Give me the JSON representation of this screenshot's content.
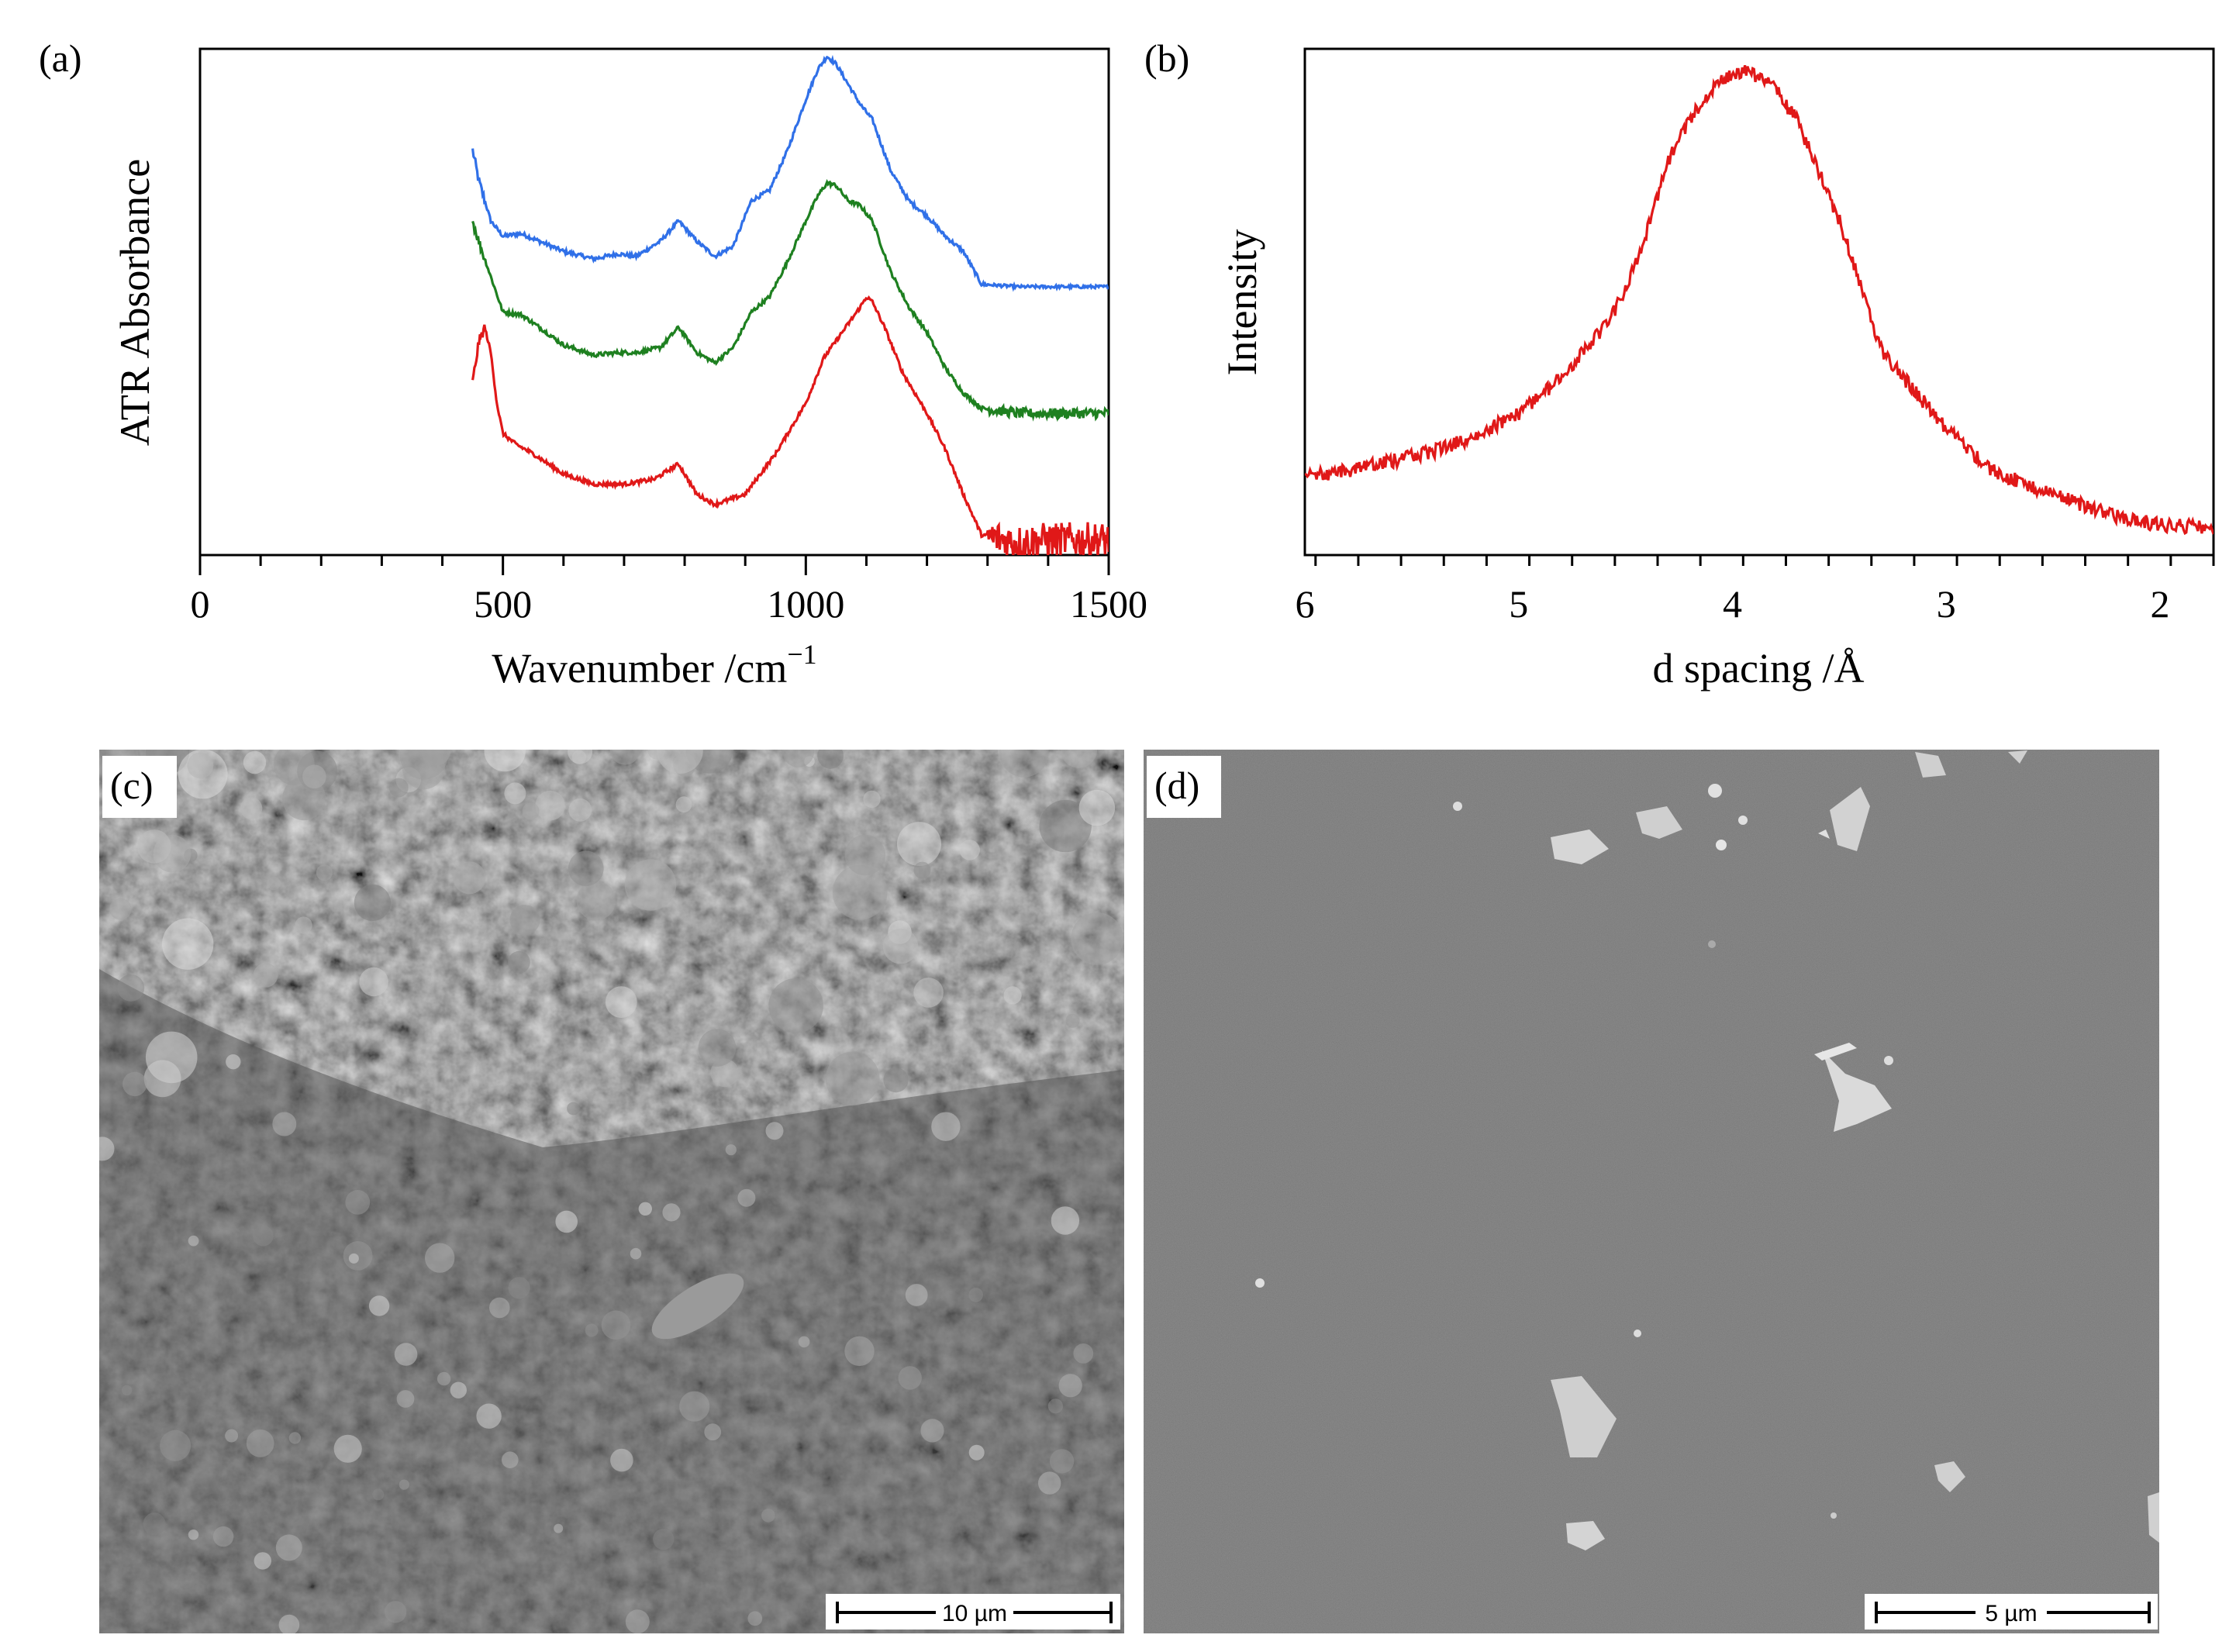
{
  "panels": {
    "a": "(a)",
    "b": "(b)",
    "c": "(c)",
    "d": "(d)"
  },
  "chart_data": [
    {
      "type": "line",
      "panel": "(a)",
      "xlabel": "Wavenumber /cm",
      "xlabel_sup": "−1",
      "ylabel": "ATR Absorbance",
      "xlim": [
        0,
        1500
      ],
      "ylim": [
        0,
        1
      ],
      "xticks": [
        0,
        500,
        1000,
        1500
      ],
      "xtick_labels": [
        "0",
        "500",
        "1000",
        "1500"
      ],
      "minor_tick_step": 100,
      "grid": false,
      "series": [
        {
          "color": "#3070e8",
          "x": [
            450,
            460,
            480,
            500,
            530,
            560,
            600,
            650,
            690,
            720,
            760,
            790,
            820,
            850,
            880,
            910,
            940,
            970,
            1000,
            1020,
            1035,
            1050,
            1070,
            1090,
            1110,
            1140,
            1170,
            1200,
            1230,
            1260,
            1290,
            1350,
            1400,
            1450,
            1500
          ],
          "y": [
            0.8,
            0.74,
            0.66,
            0.63,
            0.635,
            0.62,
            0.6,
            0.585,
            0.595,
            0.59,
            0.62,
            0.66,
            0.62,
            0.59,
            0.61,
            0.7,
            0.72,
            0.8,
            0.9,
            0.96,
            0.985,
            0.97,
            0.93,
            0.89,
            0.86,
            0.76,
            0.7,
            0.67,
            0.63,
            0.6,
            0.535,
            0.53,
            0.53,
            0.53,
            0.53
          ]
        },
        {
          "color": "#1e8020",
          "x": [
            450,
            460,
            480,
            500,
            530,
            560,
            600,
            650,
            690,
            720,
            760,
            790,
            820,
            850,
            880,
            910,
            940,
            970,
            1000,
            1020,
            1035,
            1050,
            1070,
            1090,
            1110,
            1140,
            1170,
            1200,
            1230,
            1260,
            1290,
            1350,
            1400,
            1450,
            1500
          ],
          "y": [
            0.66,
            0.62,
            0.55,
            0.48,
            0.475,
            0.45,
            0.415,
            0.395,
            0.4,
            0.4,
            0.41,
            0.45,
            0.4,
            0.38,
            0.41,
            0.48,
            0.51,
            0.58,
            0.66,
            0.71,
            0.735,
            0.73,
            0.7,
            0.69,
            0.66,
            0.56,
            0.49,
            0.44,
            0.37,
            0.32,
            0.29,
            0.28,
            0.28,
            0.28,
            0.28
          ]
        },
        {
          "color": "#e01818",
          "x": [
            450,
            460,
            470,
            480,
            490,
            500,
            520,
            550,
            600,
            650,
            700,
            750,
            790,
            820,
            850,
            900,
            950,
            1000,
            1030,
            1060,
            1090,
            1100,
            1110,
            1130,
            1160,
            1200,
            1230,
            1260,
            1290,
            1350,
            1400,
            1450,
            1500
          ],
          "y": [
            0.34,
            0.42,
            0.45,
            0.4,
            0.3,
            0.24,
            0.22,
            0.2,
            0.16,
            0.14,
            0.14,
            0.15,
            0.18,
            0.12,
            0.1,
            0.12,
            0.2,
            0.3,
            0.39,
            0.44,
            0.49,
            0.51,
            0.5,
            0.45,
            0.36,
            0.28,
            0.21,
            0.12,
            0.04,
            0.025,
            0.03,
            0.03,
            0.03
          ]
        }
      ]
    },
    {
      "type": "line",
      "panel": "(b)",
      "xlabel": "d spacing /Å",
      "ylabel": "Intensity",
      "xlim": [
        6,
        1.75
      ],
      "ylim": [
        0,
        1
      ],
      "xticks": [
        6,
        5,
        4,
        3,
        2
      ],
      "xtick_labels": [
        "6",
        "5",
        "4",
        "3",
        "2"
      ],
      "minor_tick_step": 0.2,
      "grid": false,
      "series": [
        {
          "color": "#e01818",
          "x": [
            6.0,
            5.8,
            5.6,
            5.4,
            5.2,
            5.0,
            4.8,
            4.6,
            4.5,
            4.4,
            4.3,
            4.2,
            4.1,
            4.0,
            3.95,
            3.9,
            3.8,
            3.7,
            3.6,
            3.5,
            3.4,
            3.3,
            3.2,
            3.0,
            2.8,
            2.6,
            2.4,
            2.2,
            2.0,
            1.8,
            1.75
          ],
          "y": [
            0.155,
            0.165,
            0.185,
            0.205,
            0.235,
            0.28,
            0.35,
            0.45,
            0.52,
            0.64,
            0.78,
            0.86,
            0.92,
            0.95,
            0.955,
            0.95,
            0.92,
            0.86,
            0.76,
            0.66,
            0.53,
            0.4,
            0.35,
            0.25,
            0.17,
            0.135,
            0.105,
            0.075,
            0.06,
            0.055,
            0.04
          ]
        }
      ]
    }
  ],
  "micrographs": {
    "c": {
      "scale_bar": "10 µm",
      "brightness_mean": 0.4
    },
    "d": {
      "scale_bar": "5 µm",
      "brightness_mean": 0.3
    }
  }
}
